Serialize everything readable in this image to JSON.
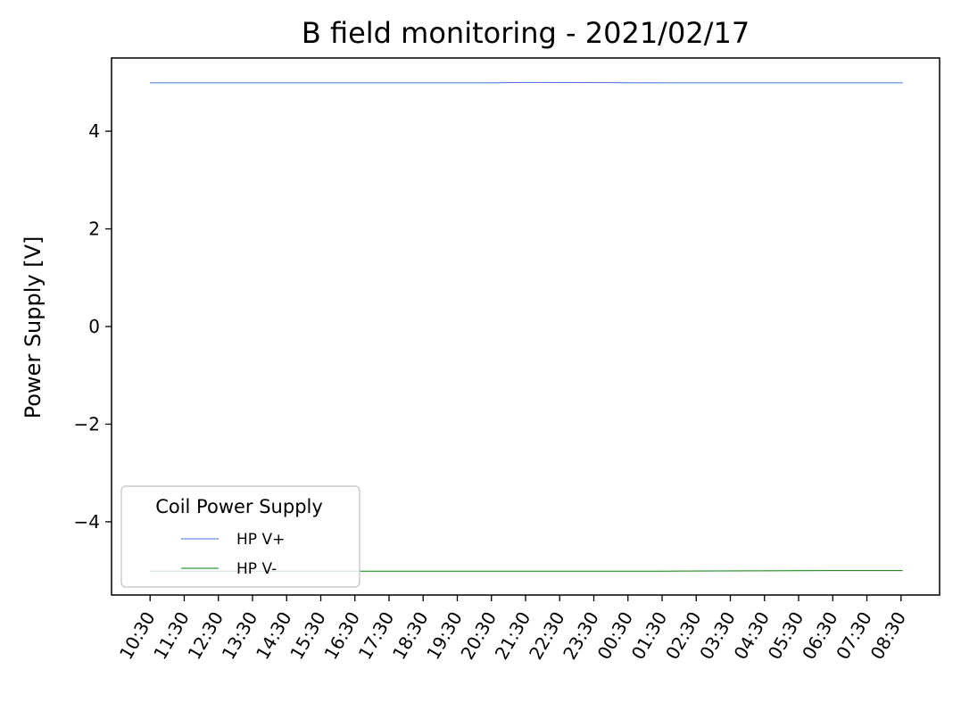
{
  "chart_data": {
    "type": "line",
    "title": "B field monitoring - 2021/02/17",
    "xlabel": "",
    "ylabel": "Power Supply [V]",
    "x_ticks": [
      "10:30",
      "11:30",
      "12:30",
      "13:30",
      "14:30",
      "15:30",
      "16:30",
      "17:30",
      "18:30",
      "19:30",
      "20:30",
      "21:30",
      "22:30",
      "23:30",
      "00:30",
      "01:30",
      "02:30",
      "03:30",
      "04:30",
      "05:30",
      "06:30",
      "07:30",
      "08:30"
    ],
    "x_range_hours": [
      -1.13,
      23.13
    ],
    "x_data_range_hours": [
      0,
      22.05
    ],
    "y_ticks": [
      -4,
      -2,
      0,
      2,
      4
    ],
    "y_tick_labels": [
      "−4",
      "−2",
      "0",
      "2",
      "4"
    ],
    "ylim": [
      -5.5,
      5.5
    ],
    "grid": false,
    "legend": {
      "title": "Coil Power Supply",
      "placement": "lower-left"
    },
    "series": [
      {
        "name": "HP V+",
        "color": "#4169e1",
        "x_hours": [
          0,
          5,
          10,
          11,
          15,
          20,
          22.05
        ],
        "values": [
          4.99,
          4.99,
          4.99,
          5.0,
          4.99,
          4.99,
          4.99
        ]
      },
      {
        "name": "HP V-",
        "color": "#008000",
        "x_hours": [
          0,
          5,
          10,
          15,
          20,
          22.05
        ],
        "values": [
          -5.01,
          -5.01,
          -5.01,
          -5.01,
          -5.0,
          -5.0
        ]
      }
    ]
  }
}
